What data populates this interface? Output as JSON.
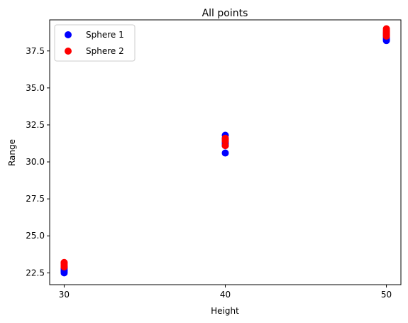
{
  "chart_data": {
    "type": "scatter",
    "title": "All points",
    "xlabel": "Height",
    "ylabel": "Range",
    "xlim": [
      29.1,
      50.9
    ],
    "ylim": [
      21.7,
      39.6
    ],
    "x_ticks": [
      30,
      40,
      50
    ],
    "y_ticks": [
      22.5,
      25.0,
      27.5,
      30.0,
      32.5,
      35.0,
      37.5
    ],
    "x_tick_labels": [
      "30",
      "40",
      "50"
    ],
    "y_tick_labels": [
      "22.5",
      "25.0",
      "27.5",
      "30.0",
      "32.5",
      "35.0",
      "37.5"
    ],
    "grid": false,
    "legend_position": "top-left",
    "series": [
      {
        "name": "Sphere 1",
        "color": "#0000ff",
        "points": [
          [
            30,
            22.5
          ],
          [
            30,
            22.6
          ],
          [
            30,
            22.7
          ],
          [
            30,
            22.8
          ],
          [
            30,
            22.9
          ],
          [
            40,
            30.6
          ],
          [
            40,
            31.1
          ],
          [
            40,
            31.2
          ],
          [
            40,
            31.3
          ],
          [
            40,
            31.4
          ],
          [
            40,
            31.6
          ],
          [
            40,
            31.8
          ],
          [
            50,
            38.2
          ],
          [
            50,
            38.3
          ],
          [
            50,
            38.4
          ],
          [
            50,
            38.5
          ],
          [
            50,
            38.6
          ],
          [
            50,
            38.7
          ]
        ]
      },
      {
        "name": "Sphere 2",
        "color": "#ff0000",
        "points": [
          [
            30,
            22.9
          ],
          [
            30,
            23.0
          ],
          [
            30,
            23.1
          ],
          [
            30,
            23.2
          ],
          [
            40,
            31.1
          ],
          [
            40,
            31.4
          ],
          [
            40,
            31.5
          ],
          [
            40,
            31.6
          ],
          [
            50,
            38.5
          ],
          [
            50,
            38.6
          ],
          [
            50,
            38.7
          ],
          [
            50,
            38.8
          ],
          [
            50,
            38.9
          ],
          [
            50,
            39.0
          ]
        ]
      }
    ]
  }
}
